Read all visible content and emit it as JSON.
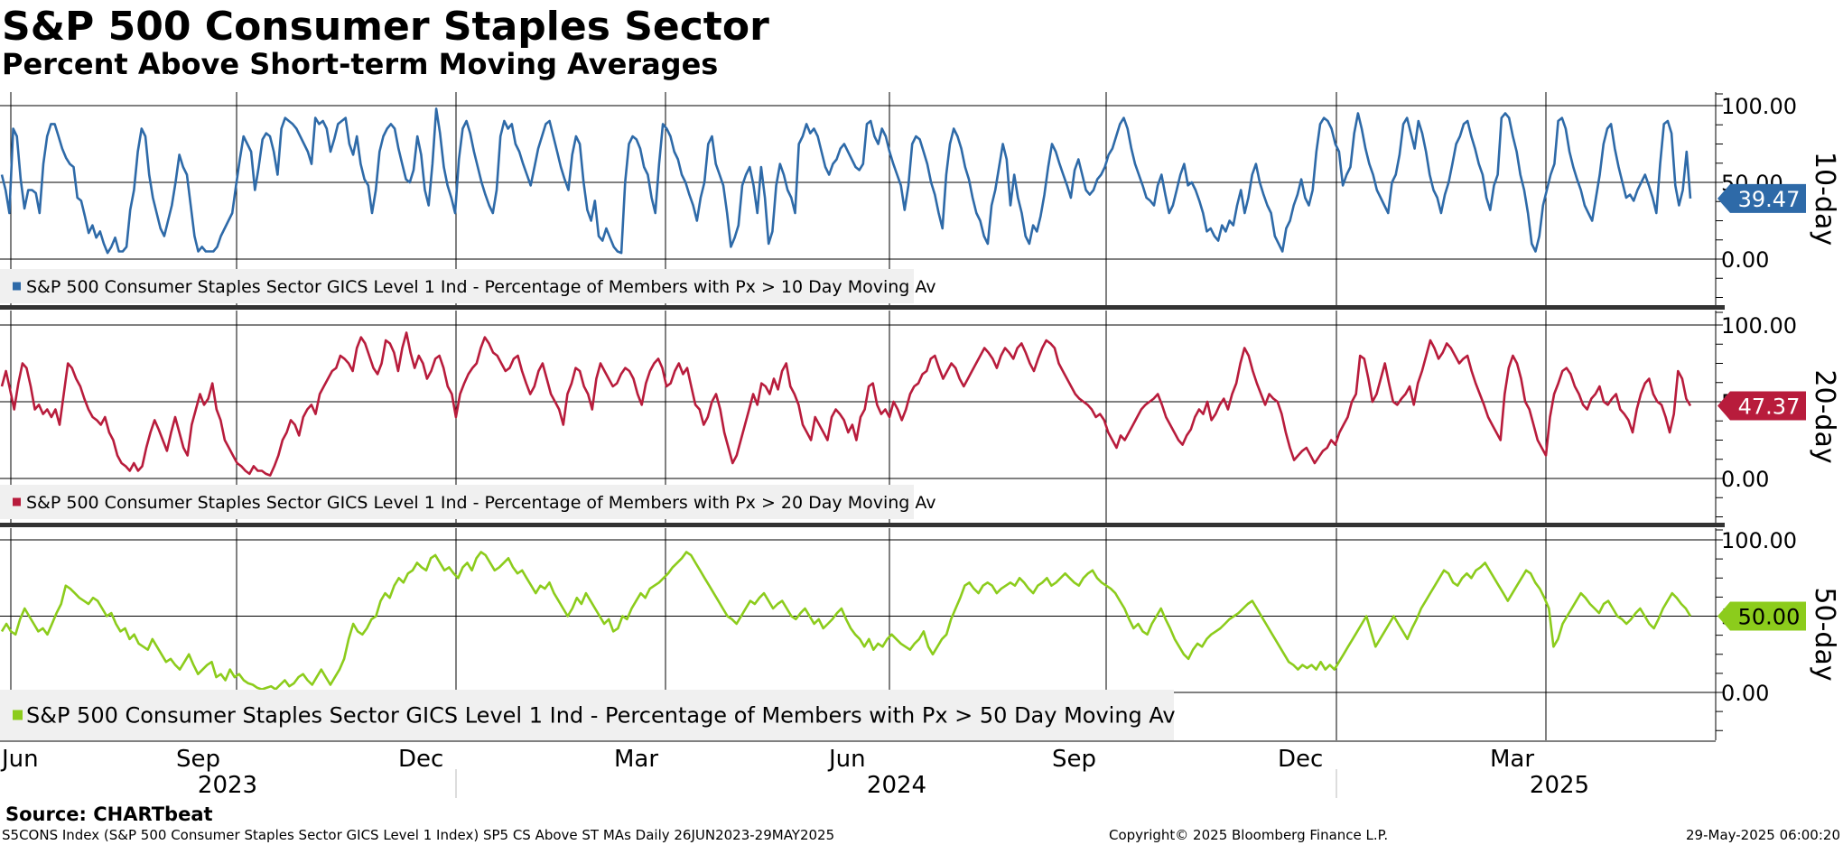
{
  "title": "S&P 500 Consumer Staples Sector",
  "subtitle": "Percent Above Short-term Moving Averages",
  "source": "Source: CHARTbeat",
  "footer": {
    "left": "S5CONS Index (S&P 500 Consumer Staples Sector GICS Level 1 Index) SP5 CS Above ST MAs  Daily 26JUN2023-29MAY2025",
    "center": "Copyright© 2025 Bloomberg Finance L.P.",
    "right": "29-May-2025 06:00:20"
  },
  "x_axis": {
    "months": [
      "Jun",
      "Sep",
      "Dec",
      "Mar",
      "Jun",
      "Sep",
      "Dec",
      "Mar"
    ],
    "years": [
      "2023",
      "2024",
      "2025"
    ]
  },
  "chart_data": [
    {
      "type": "line",
      "panel_title": "10-day",
      "color": "#2e6aa8",
      "legend": "S&P 500 Consumer Staples Sector GICS Level 1 Ind - Percentage of Members with Px > 10 Day Moving Av",
      "last_value": "39.47",
      "y_ticks": [
        "100.00",
        "50.00",
        "0.00"
      ],
      "ylim": [
        -30,
        105
      ],
      "x_range": [
        "2023-06-26",
        "2025-05-29"
      ],
      "values": [
        55,
        45,
        30,
        85,
        80,
        52,
        33,
        45,
        45,
        43,
        30,
        62,
        80,
        88,
        88,
        80,
        72,
        66,
        62,
        60,
        40,
        38,
        28,
        17,
        22,
        14,
        18,
        10,
        4,
        8,
        14,
        5,
        5,
        8,
        32,
        45,
        70,
        85,
        80,
        55,
        40,
        30,
        20,
        15,
        25,
        35,
        50,
        68,
        60,
        55,
        35,
        15,
        5,
        8,
        5,
        5,
        5,
        8,
        15,
        20,
        25,
        30,
        48,
        65,
        80,
        75,
        70,
        45,
        60,
        78,
        82,
        80,
        70,
        55,
        85,
        92,
        90,
        88,
        85,
        80,
        75,
        70,
        62,
        92,
        88,
        90,
        85,
        70,
        78,
        88,
        90,
        92,
        75,
        68,
        80,
        62,
        52,
        48,
        30,
        45,
        70,
        80,
        85,
        88,
        85,
        72,
        62,
        52,
        50,
        58,
        80,
        68,
        45,
        35,
        62,
        98,
        82,
        60,
        48,
        40,
        30,
        65,
        85,
        90,
        82,
        70,
        60,
        50,
        42,
        35,
        30,
        45,
        80,
        90,
        85,
        88,
        75,
        70,
        62,
        55,
        48,
        60,
        72,
        80,
        88,
        90,
        80,
        70,
        60,
        52,
        45,
        68,
        80,
        75,
        50,
        32,
        25,
        38,
        15,
        12,
        20,
        14,
        8,
        5,
        4,
        50,
        75,
        80,
        78,
        72,
        60,
        55,
        40,
        30,
        62,
        88,
        85,
        80,
        70,
        65,
        55,
        50,
        42,
        35,
        25,
        40,
        50,
        75,
        80,
        62,
        55,
        48,
        30,
        8,
        14,
        22,
        48,
        55,
        60,
        48,
        30,
        60,
        40,
        10,
        18,
        48,
        62,
        55,
        45,
        40,
        30,
        75,
        80,
        88,
        82,
        85,
        80,
        70,
        60,
        55,
        62,
        65,
        72,
        75,
        70,
        65,
        60,
        58,
        62,
        88,
        90,
        80,
        75,
        85,
        80,
        70,
        62,
        55,
        48,
        32,
        48,
        75,
        80,
        78,
        70,
        62,
        50,
        42,
        30,
        20,
        55,
        75,
        85,
        80,
        72,
        60,
        52,
        40,
        30,
        25,
        15,
        10,
        35,
        45,
        60,
        75,
        65,
        35,
        55,
        40,
        30,
        15,
        10,
        22,
        18,
        28,
        42,
        60,
        75,
        70,
        62,
        55,
        48,
        40,
        58,
        65,
        55,
        45,
        42,
        45,
        52,
        55,
        60,
        68,
        72,
        80,
        88,
        92,
        85,
        72,
        62,
        55,
        48,
        40,
        38,
        35,
        48,
        55,
        42,
        30,
        35,
        45,
        55,
        62,
        48,
        50,
        45,
        38,
        30,
        18,
        20,
        15,
        12,
        22,
        18,
        25,
        22,
        35,
        45,
        30,
        40,
        55,
        62,
        50,
        42,
        35,
        30,
        15,
        10,
        5,
        20,
        25,
        35,
        42,
        52,
        40,
        35,
        45,
        70,
        88,
        92,
        90,
        85,
        75,
        70,
        48,
        55,
        60,
        82,
        95,
        85,
        72,
        62,
        55,
        45,
        40,
        35,
        30,
        50,
        55,
        68,
        88,
        92,
        82,
        72,
        90,
        82,
        70,
        55,
        45,
        40,
        30,
        42,
        50,
        62,
        75,
        80,
        88,
        90,
        80,
        72,
        62,
        55,
        40,
        32,
        48,
        55,
        92,
        95,
        92,
        80,
        70,
        55,
        45,
        30,
        10,
        5,
        15,
        35,
        45,
        55,
        62,
        90,
        92,
        85,
        70,
        60,
        52,
        45,
        35,
        30,
        25,
        40,
        55,
        75,
        85,
        88,
        72,
        60,
        50,
        40,
        42,
        38,
        45,
        50,
        55,
        48,
        40,
        30,
        62,
        88,
        90,
        82,
        48,
        35,
        45,
        70,
        39.47
      ]
    },
    {
      "type": "line",
      "panel_title": "20-day",
      "color": "#b81c3c",
      "legend": "S&P 500 Consumer Staples Sector GICS Level 1 Ind - Percentage of Members with Px > 20 Day Moving Av",
      "last_value": "47.37",
      "y_ticks": [
        "100.00",
        "50.00",
        "0.00"
      ],
      "ylim": [
        -28,
        105
      ],
      "x_range": [
        "2023-06-26",
        "2025-05-29"
      ],
      "values": [
        60,
        70,
        58,
        45,
        62,
        75,
        72,
        60,
        45,
        48,
        42,
        45,
        40,
        45,
        35,
        55,
        75,
        72,
        65,
        60,
        52,
        45,
        40,
        38,
        35,
        40,
        30,
        25,
        15,
        10,
        8,
        5,
        10,
        5,
        8,
        20,
        30,
        38,
        32,
        25,
        18,
        30,
        40,
        30,
        20,
        15,
        35,
        45,
        55,
        48,
        52,
        62,
        45,
        38,
        25,
        20,
        15,
        10,
        8,
        5,
        3,
        8,
        5,
        5,
        3,
        2,
        8,
        15,
        25,
        30,
        38,
        35,
        28,
        40,
        45,
        48,
        42,
        55,
        60,
        65,
        70,
        72,
        80,
        78,
        75,
        70,
        85,
        92,
        88,
        80,
        72,
        68,
        75,
        90,
        88,
        82,
        70,
        85,
        95,
        82,
        72,
        80,
        75,
        65,
        70,
        78,
        80,
        72,
        60,
        55,
        40,
        55,
        62,
        68,
        72,
        75,
        85,
        92,
        88,
        82,
        80,
        75,
        70,
        72,
        78,
        80,
        70,
        62,
        55,
        60,
        70,
        75,
        65,
        55,
        50,
        45,
        35,
        55,
        62,
        72,
        70,
        60,
        55,
        45,
        65,
        75,
        70,
        65,
        60,
        62,
        68,
        72,
        70,
        65,
        55,
        48,
        62,
        70,
        75,
        78,
        72,
        60,
        62,
        70,
        75,
        68,
        72,
        60,
        48,
        45,
        35,
        40,
        50,
        55,
        45,
        30,
        20,
        10,
        15,
        25,
        35,
        45,
        55,
        48,
        62,
        60,
        55,
        65,
        58,
        70,
        75,
        60,
        55,
        48,
        35,
        30,
        25,
        40,
        35,
        30,
        25,
        40,
        45,
        42,
        38,
        30,
        35,
        25,
        40,
        45,
        60,
        62,
        48,
        42,
        45,
        40,
        50,
        45,
        38,
        45,
        55,
        60,
        62,
        68,
        70,
        78,
        80,
        72,
        65,
        70,
        75,
        72,
        65,
        60,
        65,
        70,
        75,
        80,
        85,
        82,
        78,
        72,
        80,
        85,
        82,
        78,
        85,
        88,
        82,
        75,
        70,
        78,
        85,
        90,
        88,
        85,
        75,
        70,
        65,
        60,
        55,
        52,
        50,
        48,
        45,
        40,
        42,
        38,
        30,
        25,
        20,
        28,
        25,
        30,
        35,
        40,
        45,
        48,
        50,
        52,
        55,
        48,
        40,
        35,
        30,
        25,
        22,
        28,
        32,
        40,
        45,
        42,
        50,
        38,
        42,
        48,
        52,
        45,
        55,
        62,
        75,
        85,
        80,
        70,
        62,
        55,
        48,
        55,
        52,
        50,
        42,
        30,
        20,
        12,
        15,
        18,
        20,
        15,
        10,
        14,
        18,
        20,
        25,
        22,
        30,
        35,
        40,
        50,
        55,
        80,
        78,
        65,
        50,
        55,
        65,
        75,
        62,
        50,
        48,
        52,
        55,
        60,
        48,
        62,
        70,
        80,
        90,
        85,
        78,
        82,
        88,
        85,
        80,
        75,
        78,
        80,
        70,
        62,
        55,
        48,
        40,
        35,
        30,
        25,
        55,
        72,
        80,
        75,
        65,
        50,
        45,
        35,
        25,
        20,
        15,
        40,
        55,
        62,
        70,
        72,
        68,
        60,
        55,
        48,
        45,
        52,
        55,
        60,
        50,
        48,
        52,
        55,
        45,
        42,
        38,
        30,
        45,
        55,
        62,
        65,
        55,
        50,
        48,
        40,
        30,
        42,
        70,
        65,
        52,
        47.37
      ]
    },
    {
      "type": "line",
      "panel_title": "50-day",
      "color": "#8ccc1c",
      "legend": "S&P 500 Consumer Staples Sector GICS Level 1 Ind - Percentage of Members with Px > 50 Day Moving Av",
      "last_value": "50.00",
      "y_ticks": [
        "100.00",
        "50.00",
        "0.00"
      ],
      "ylim": [
        -30,
        105
      ],
      "x_range": [
        "2023-06-26",
        "2025-05-29"
      ],
      "values": [
        40,
        45,
        40,
        38,
        48,
        55,
        50,
        45,
        40,
        42,
        38,
        45,
        52,
        58,
        70,
        68,
        65,
        62,
        60,
        58,
        62,
        60,
        55,
        50,
        52,
        45,
        40,
        42,
        35,
        38,
        32,
        30,
        28,
        35,
        30,
        25,
        20,
        22,
        18,
        15,
        20,
        25,
        18,
        12,
        15,
        18,
        20,
        10,
        12,
        8,
        15,
        10,
        12,
        8,
        6,
        5,
        3,
        2,
        3,
        4,
        2,
        5,
        8,
        4,
        6,
        10,
        12,
        8,
        5,
        10,
        15,
        10,
        5,
        10,
        15,
        22,
        35,
        45,
        40,
        38,
        42,
        48,
        50,
        60,
        65,
        62,
        70,
        75,
        72,
        78,
        80,
        85,
        82,
        80,
        88,
        90,
        85,
        80,
        82,
        78,
        75,
        82,
        85,
        80,
        88,
        92,
        90,
        85,
        80,
        82,
        85,
        88,
        82,
        78,
        80,
        75,
        70,
        65,
        70,
        68,
        72,
        65,
        60,
        55,
        50,
        55,
        62,
        58,
        65,
        60,
        55,
        50,
        45,
        48,
        40,
        42,
        50,
        48,
        55,
        60,
        65,
        62,
        68,
        70,
        72,
        75,
        78,
        82,
        85,
        88,
        92,
        90,
        85,
        80,
        75,
        70,
        65,
        60,
        55,
        50,
        48,
        45,
        50,
        55,
        60,
        58,
        62,
        65,
        60,
        55,
        58,
        60,
        55,
        50,
        48,
        52,
        55,
        50,
        45,
        48,
        42,
        45,
        48,
        52,
        55,
        48,
        42,
        38,
        35,
        30,
        35,
        28,
        32,
        30,
        35,
        38,
        35,
        32,
        30,
        28,
        32,
        35,
        40,
        30,
        25,
        30,
        35,
        38,
        48,
        55,
        62,
        70,
        72,
        68,
        65,
        70,
        72,
        70,
        65,
        68,
        70,
        72,
        70,
        75,
        72,
        68,
        65,
        70,
        72,
        75,
        70,
        72,
        75,
        78,
        75,
        72,
        70,
        75,
        78,
        80,
        75,
        72,
        70,
        68,
        65,
        60,
        55,
        48,
        42,
        45,
        40,
        38,
        45,
        50,
        55,
        48,
        42,
        35,
        30,
        25,
        22,
        28,
        32,
        30,
        35,
        38,
        40,
        42,
        45,
        48,
        50,
        52,
        55,
        58,
        60,
        55,
        50,
        45,
        40,
        35,
        30,
        25,
        20,
        18,
        15,
        18,
        16,
        18,
        15,
        20,
        15,
        18,
        15,
        20,
        25,
        30,
        35,
        40,
        45,
        50,
        40,
        30,
        35,
        40,
        45,
        50,
        45,
        40,
        35,
        42,
        48,
        55,
        60,
        65,
        70,
        75,
        80,
        78,
        72,
        70,
        75,
        78,
        75,
        80,
        82,
        85,
        80,
        75,
        70,
        65,
        60,
        65,
        70,
        75,
        80,
        78,
        72,
        68,
        62,
        55,
        30,
        35,
        45,
        50,
        55,
        60,
        65,
        62,
        58,
        55,
        52,
        58,
        60,
        55,
        50,
        48,
        45,
        48,
        52,
        55,
        50,
        45,
        42,
        48,
        55,
        60,
        65,
        62,
        58,
        55,
        50
      ]
    }
  ]
}
